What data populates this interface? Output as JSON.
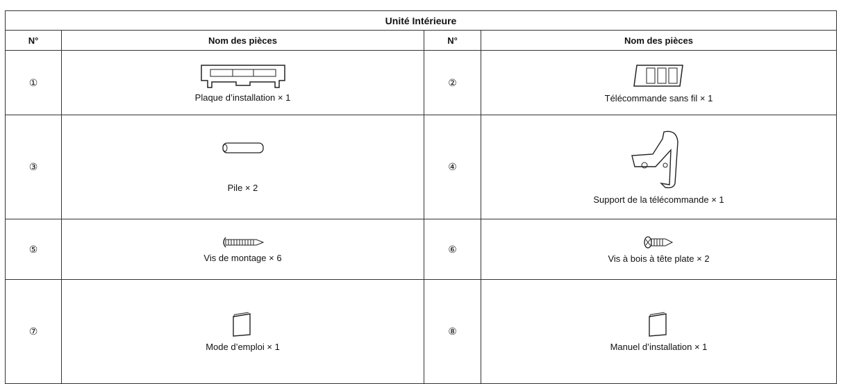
{
  "header": {
    "title": "Unité Intérieure"
  },
  "table": {
    "columns": [
      "N°",
      "Nom des pièces",
      "N°",
      "Nom des pièces"
    ],
    "rows": [
      [
        {
          "number": "①",
          "name": "Plaque d’installation × 1"
        },
        {
          "number": "②",
          "name": "Télécommande sans fil × 1"
        }
      ],
      [
        {
          "number": "③",
          "name": "Pile × 2"
        },
        {
          "number": "④",
          "name": "Support de la télécommande × 1"
        }
      ],
      [
        {
          "number": "⑤",
          "name": "Vis de montage × 6"
        },
        {
          "number": "⑥",
          "name": "Vis à bois à tête plate × 2"
        }
      ],
      [
        {
          "number": "⑦",
          "name": "Mode d’emploi × 1"
        },
        {
          "number": "⑧",
          "name": "Manuel d’installation × 1"
        }
      ]
    ]
  }
}
